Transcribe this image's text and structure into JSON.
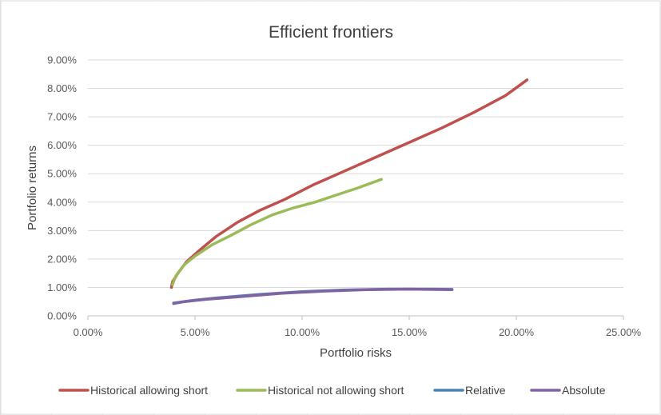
{
  "chart_data": {
    "type": "line",
    "title": "Efficient frontiers",
    "xlabel": "Portfolio risks",
    "ylabel": "Portfolio returns",
    "xlim": [
      0,
      0.25
    ],
    "ylim": [
      0,
      0.09
    ],
    "x_ticks": [
      "0.00%",
      "5.00%",
      "10.00%",
      "15.00%",
      "20.00%",
      "25.00%"
    ],
    "y_ticks": [
      "0.00%",
      "1.00%",
      "2.00%",
      "3.00%",
      "4.00%",
      "5.00%",
      "6.00%",
      "7.00%",
      "8.00%",
      "9.00%"
    ],
    "grid": "horizontal",
    "legend_position": "bottom",
    "series": [
      {
        "name": "Historical allowing short",
        "color": "#c0504d",
        "points": [
          [
            0.039,
            0.01
          ],
          [
            0.0395,
            0.012
          ],
          [
            0.042,
            0.015
          ],
          [
            0.046,
            0.019
          ],
          [
            0.052,
            0.023
          ],
          [
            0.06,
            0.028
          ],
          [
            0.07,
            0.033
          ],
          [
            0.08,
            0.037
          ],
          [
            0.092,
            0.041
          ],
          [
            0.105,
            0.046
          ],
          [
            0.12,
            0.051
          ],
          [
            0.135,
            0.056
          ],
          [
            0.15,
            0.061
          ],
          [
            0.165,
            0.066
          ],
          [
            0.18,
            0.0715
          ],
          [
            0.195,
            0.0775
          ],
          [
            0.205,
            0.083
          ]
        ]
      },
      {
        "name": "Historical not allowing short",
        "color": "#9bbb59",
        "points": [
          [
            0.0395,
            0.011
          ],
          [
            0.041,
            0.014
          ],
          [
            0.045,
            0.018
          ],
          [
            0.05,
            0.021
          ],
          [
            0.058,
            0.025
          ],
          [
            0.066,
            0.028
          ],
          [
            0.076,
            0.032
          ],
          [
            0.086,
            0.0355
          ],
          [
            0.096,
            0.038
          ],
          [
            0.106,
            0.04
          ],
          [
            0.116,
            0.0425
          ],
          [
            0.126,
            0.045
          ],
          [
            0.137,
            0.048
          ]
        ]
      },
      {
        "name": "Relative",
        "color": "#4f81bd",
        "points": [
          [
            0.04,
            0.0045
          ],
          [
            0.05,
            0.0055
          ],
          [
            0.06,
            0.0063
          ],
          [
            0.08,
            0.0075
          ],
          [
            0.1,
            0.0085
          ],
          [
            0.12,
            0.0091
          ],
          [
            0.14,
            0.0094
          ],
          [
            0.16,
            0.0094
          ],
          [
            0.17,
            0.0093
          ]
        ]
      },
      {
        "name": "Absolute",
        "color": "#8064a2",
        "points": [
          [
            0.04,
            0.0043
          ],
          [
            0.045,
            0.005
          ],
          [
            0.055,
            0.0058
          ],
          [
            0.07,
            0.0067
          ],
          [
            0.09,
            0.0079
          ],
          [
            0.11,
            0.0087
          ],
          [
            0.13,
            0.0092
          ],
          [
            0.15,
            0.0094
          ],
          [
            0.17,
            0.0092
          ]
        ]
      }
    ]
  }
}
